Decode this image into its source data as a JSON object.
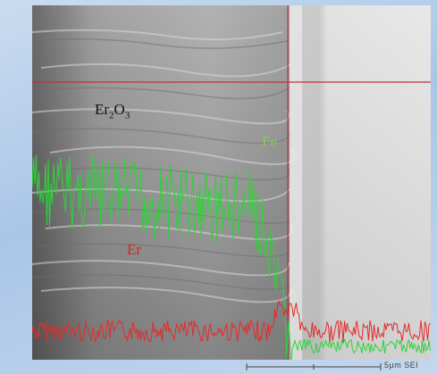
{
  "image": {
    "labels": {
      "oxide": "Er",
      "oxide_sub1": "2",
      "oxide_o": "O",
      "oxide_sub2": "3",
      "fe": "Fe",
      "er": "Er"
    },
    "scale_text": "5µm  SEI",
    "colors": {
      "fe_signal": "#2fd23a",
      "er_signal": "#e52b2b",
      "crosshair": "#c23040",
      "label_dark": "#111111",
      "label_fe": "#7cd14a",
      "label_er": "#e02020"
    }
  }
}
